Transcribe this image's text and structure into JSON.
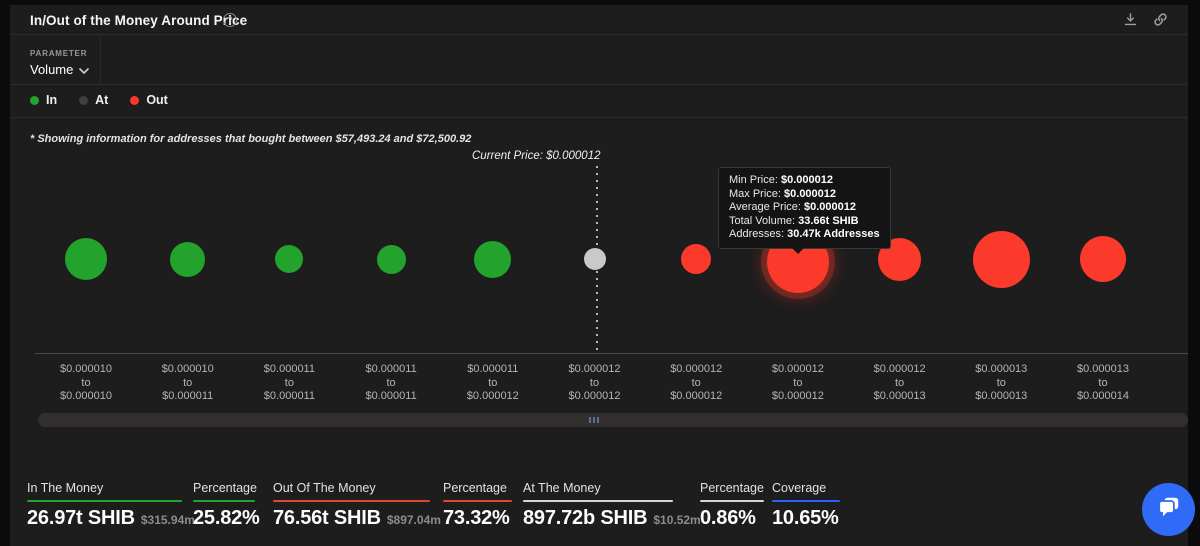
{
  "header": {
    "title": "In/Out of the Money Around Price",
    "help_icon": "question-circle-icon",
    "actions": [
      "download",
      "copy-link"
    ]
  },
  "parameter": {
    "label": "PARAMETER",
    "value": "Volume"
  },
  "legend": {
    "items": [
      {
        "label": "In",
        "color": "#23a32b"
      },
      {
        "label": "At",
        "color": "#3f3f3f"
      },
      {
        "label": "Out",
        "color": "#fb3a2c"
      }
    ]
  },
  "note": "* Showing information for addresses that bought between $57,493.24 and $72,500.92",
  "chart_data": {
    "type": "scatter",
    "subtype": "bubble",
    "title": "In/Out of the Money Around Price",
    "annotation": "Current Price: $0.000012",
    "grid": false,
    "legend_position": "top-left",
    "categories": [
      {
        "from": "$0.000010",
        "to": "$0.000010"
      },
      {
        "from": "$0.000010",
        "to": "$0.000011"
      },
      {
        "from": "$0.000011",
        "to": "$0.000011"
      },
      {
        "from": "$0.000011",
        "to": "$0.000011"
      },
      {
        "from": "$0.000011",
        "to": "$0.000012"
      },
      {
        "from": "$0.000012",
        "to": "$0.000012"
      },
      {
        "from": "$0.000012",
        "to": "$0.000012"
      },
      {
        "from": "$0.000012",
        "to": "$0.000012"
      },
      {
        "from": "$0.000012",
        "to": "$0.000013"
      },
      {
        "from": "$0.000013",
        "to": "$0.000013"
      },
      {
        "from": "$0.000013",
        "to": "$0.000014"
      }
    ],
    "points": [
      {
        "status": "in",
        "relative_size": 42
      },
      {
        "status": "in",
        "relative_size": 35
      },
      {
        "status": "in",
        "relative_size": 28
      },
      {
        "status": "in",
        "relative_size": 29
      },
      {
        "status": "in",
        "relative_size": 37
      },
      {
        "status": "at",
        "relative_size": 22
      },
      {
        "status": "out",
        "relative_size": 30
      },
      {
        "status": "out",
        "relative_size": 62,
        "highlighted": true
      },
      {
        "status": "out",
        "relative_size": 43
      },
      {
        "status": "out",
        "relative_size": 57
      },
      {
        "status": "out",
        "relative_size": 46
      }
    ],
    "colors": {
      "in": "#23a32b",
      "at": "#c9c9c9",
      "out": "#fb3a2c"
    }
  },
  "tooltip": {
    "lines": [
      {
        "label": "Min Price:",
        "value": "$0.000012"
      },
      {
        "label": "Max Price:",
        "value": "$0.000012"
      },
      {
        "label": "Average Price:",
        "value": "$0.000012"
      },
      {
        "label": "Total Volume:",
        "value": "33.66t SHIB"
      },
      {
        "label": "Addresses:",
        "value": "30.47k Addresses"
      }
    ]
  },
  "stats": [
    {
      "label": "In The Money",
      "value": "26.97t SHIB",
      "secondary": "$315.94m",
      "accent": "#23a32b"
    },
    {
      "label": "Percentage",
      "value": "25.82%",
      "secondary": "",
      "accent": "#23a32b"
    },
    {
      "label": "Out Of The Money",
      "value": "76.56t SHIB",
      "secondary": "$897.04m",
      "accent": "#e0482e"
    },
    {
      "label": "Percentage",
      "value": "73.32%",
      "secondary": "",
      "accent": "#e0482e"
    },
    {
      "label": "At The Money",
      "value": "897.72b SHIB",
      "secondary": "$10.52m",
      "accent": "#d6d6d6"
    },
    {
      "label": "Percentage",
      "value": "0.86%",
      "secondary": "",
      "accent": "#d6d6d6"
    },
    {
      "label": "Coverage",
      "value": "10.65%",
      "secondary": "",
      "accent": "#2962ff"
    }
  ],
  "chat": {
    "icon": "chat-bubbles-icon",
    "color": "#2f6bf6"
  }
}
